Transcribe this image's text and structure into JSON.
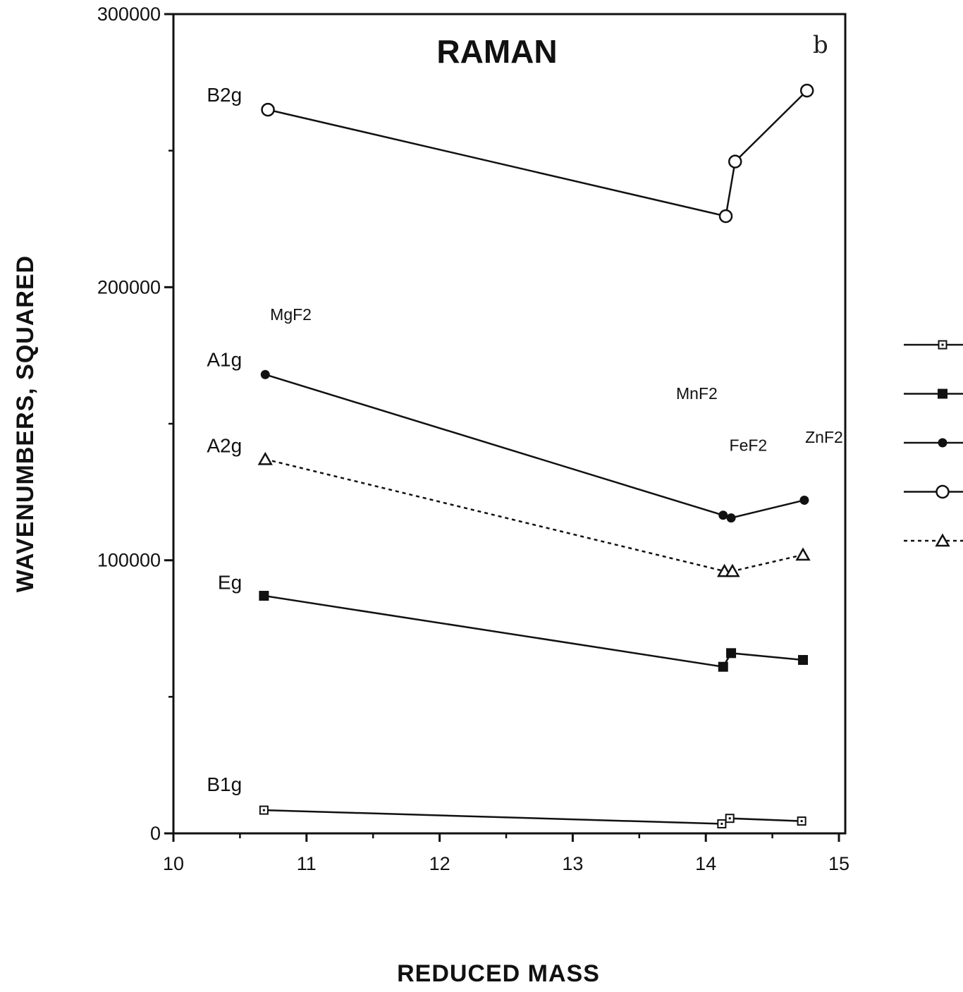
{
  "chart_data": {
    "type": "line",
    "title": "RAMAN",
    "panel_letter": "b",
    "xlabel": "REDUCED MASS",
    "ylabel": "WAVENUMBERS,  SQUARED",
    "xlim": [
      10,
      15
    ],
    "ylim": [
      0,
      300000
    ],
    "x_ticks": [
      "10",
      "11",
      "12",
      "13",
      "14",
      "15"
    ],
    "y_ticks": [
      "0",
      "100000",
      "200000",
      "300000"
    ],
    "grid": false,
    "legend_position": "right (cropped)",
    "compound_labels": [
      {
        "text": "MgF2",
        "x": 10.7,
        "y": 188000
      },
      {
        "text": "MnF2",
        "x": 13.75,
        "y": 159000
      },
      {
        "text": "FeF2",
        "x": 14.15,
        "y": 140000
      },
      {
        "text": "ZnF2",
        "x": 14.72,
        "y": 143000
      }
    ],
    "series": [
      {
        "name": "B1g",
        "marker": "open-square-small",
        "dash": "solid",
        "label_anchor": {
          "x": 10.7,
          "y": 15500
        },
        "x": [
          10.68,
          14.12,
          14.18,
          14.72
        ],
        "y": [
          8500,
          3500,
          5500,
          4500
        ]
      },
      {
        "name": "Eg",
        "marker": "filled-square",
        "dash": "solid",
        "label_anchor": {
          "x": 10.7,
          "y": 89500
        },
        "x": [
          10.68,
          14.13,
          14.19,
          14.73
        ],
        "y": [
          87000,
          61000,
          66000,
          63500
        ]
      },
      {
        "name": "A1g",
        "marker": "filled-circle",
        "dash": "solid",
        "label_anchor": {
          "x": 10.7,
          "y": 171000
        },
        "x": [
          10.69,
          14.13,
          14.19,
          14.74
        ],
        "y": [
          168000,
          116500,
          115500,
          122000
        ]
      },
      {
        "name": "B2g",
        "marker": "open-circle",
        "dash": "solid",
        "label_anchor": {
          "x": 10.7,
          "y": 268000
        },
        "x": [
          10.71,
          14.15,
          14.22,
          14.76
        ],
        "y": [
          265000,
          226000,
          246000,
          272000
        ]
      },
      {
        "name": "A2g",
        "marker": "open-triangle",
        "dash": "dotted",
        "label_anchor": {
          "x": 10.7,
          "y": 139500
        },
        "x": [
          10.69,
          14.14,
          14.2,
          14.73
        ],
        "y": [
          137000,
          96000,
          96000,
          102000
        ]
      }
    ]
  }
}
